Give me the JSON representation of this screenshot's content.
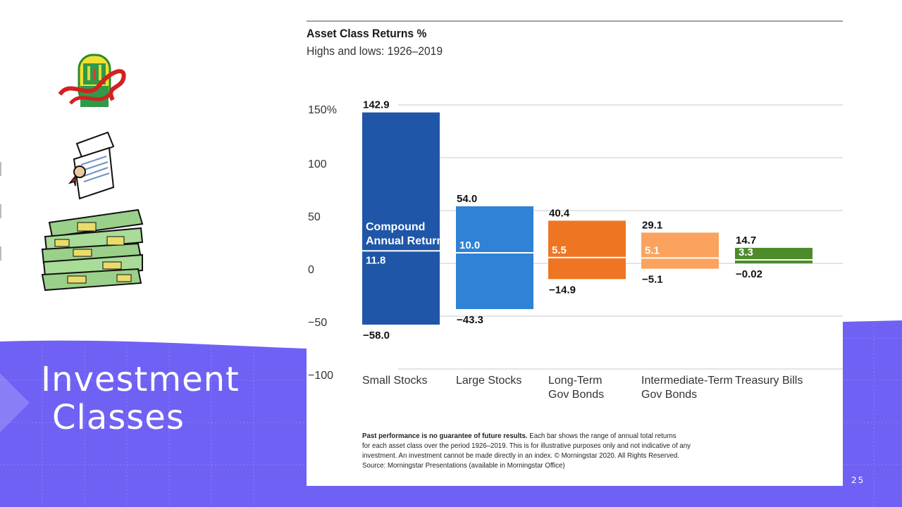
{
  "slide": {
    "title_line1": "Investment",
    "title_line2": "Classes",
    "page_number": "25",
    "colors": {
      "band": "#7061f5",
      "band_light": "#8a7ef7",
      "white": "#ffffff"
    }
  },
  "icons": [
    "trophy-cup-clipart-icon",
    "certificate-clipart-icon",
    "money-stack-clipart-icon"
  ],
  "chart_data": {
    "type": "bar",
    "title": "Asset Class Returns %",
    "subtitle": "Highs and lows: 1926–2019",
    "y_ticks": [
      "150%",
      "100",
      "50",
      "0",
      "−50",
      "−100"
    ],
    "y_tick_values": [
      150,
      100,
      50,
      0,
      -50,
      -100
    ],
    "ylim": [
      -100,
      150
    ],
    "categories": [
      "Small Stocks",
      "Large Stocks",
      "Long-Term Gov Bonds",
      "Intermediate-Term Gov Bonds",
      "Treasury Bills"
    ],
    "category_labels": [
      [
        "Small Stocks"
      ],
      [
        "Large Stocks"
      ],
      [
        "Long-Term",
        "Gov Bonds"
      ],
      [
        "Intermediate-Term",
        "Gov Bonds"
      ],
      [
        "Treasury Bills"
      ]
    ],
    "series": [
      {
        "name": "High",
        "values": [
          142.9,
          54.0,
          40.4,
          29.1,
          14.7
        ]
      },
      {
        "name": "Low",
        "values": [
          -58.0,
          -43.3,
          -14.9,
          -5.1,
          -0.02
        ]
      },
      {
        "name": "Compound Annual Return",
        "values": [
          11.8,
          10.0,
          5.5,
          5.1,
          3.3
        ]
      }
    ],
    "high_labels": [
      "142.9",
      "54.0",
      "40.4",
      "29.1",
      "14.7"
    ],
    "low_labels": [
      "−58.0",
      "−43.3",
      "−14.9",
      "−5.1",
      "−0.02"
    ],
    "car_labels": [
      "11.8",
      "10.0",
      "5.5",
      "5.1",
      "3.3"
    ],
    "colors": [
      "#1f56a8",
      "#2f82d6",
      "#ee7623",
      "#fba35e",
      "#4c8c2b"
    ],
    "annotation": [
      "Compound",
      "Annual Return"
    ],
    "grid": true
  },
  "footnote": {
    "bold": "Past performance is no guarantee of future results.",
    "text1": " Each bar shows the range of annual total returns",
    "line2": "for each asset class over the period 1926–2019. This is for illustrative purposes only and not indicative of any",
    "line3": "investment. An investment cannot be made directly in an index. © Morningstar 2020. All Rights Reserved.",
    "line4": "Source: Morningstar Presentations (available in Morningstar Office)"
  }
}
